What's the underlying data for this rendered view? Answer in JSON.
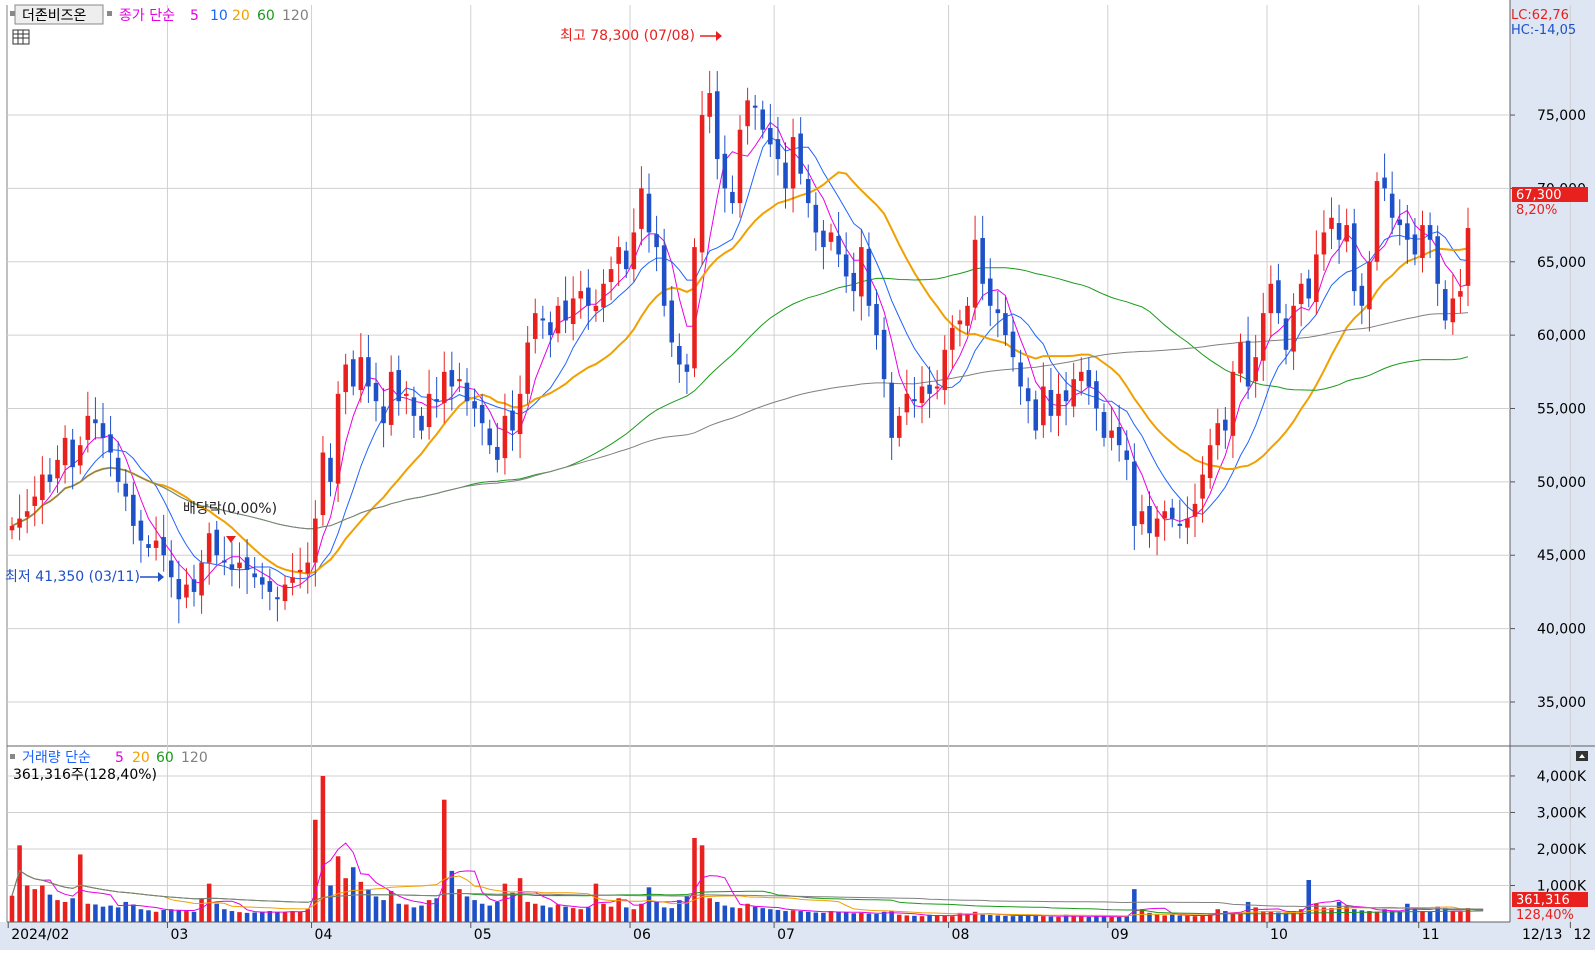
{
  "header": {
    "stock_name": "더존비즈온",
    "ma_label": "종가 단순",
    "ma_periods": [
      "5",
      "10",
      "20",
      "60",
      "120"
    ],
    "ma_colors": [
      "#e600e6",
      "#1e64ff",
      "#f0a000",
      "#1a9a1a",
      "#808080"
    ]
  },
  "volume_header": {
    "label": "거래량 단순",
    "ma_periods": [
      "5",
      "20",
      "60",
      "120"
    ],
    "current": "361,316주(128,40%)"
  },
  "right_info": {
    "lc": "LC:62,76",
    "hc": "HC:-14,05"
  },
  "markers": {
    "high": "최고 78,300 (07/08)",
    "low": "최저 41,350 (03/11)",
    "dividend": "배당락(0,00%)"
  },
  "price_tags": {
    "price": "67,300",
    "change": "8,20%",
    "volume": "361,316",
    "volume_pct": "128,40%"
  },
  "last_date": "12/13",
  "colors": {
    "up": "#e8201e",
    "down": "#1e50c8",
    "grid": "#d0d0d0",
    "axis_bg": "#dde6f2"
  },
  "chart_data": {
    "type": "candlestick",
    "x_axis_labels": [
      "2024/02",
      "03",
      "04",
      "05",
      "06",
      "07",
      "08",
      "09",
      "10",
      "11",
      "12"
    ],
    "price_axis": {
      "ticks": [
        35000,
        40000,
        45000,
        50000,
        55000,
        60000,
        65000,
        70000,
        75000
      ],
      "tick_labels": [
        "35,000",
        "40,000",
        "45,000",
        "50,000",
        "55,000",
        "60,000",
        "65,000",
        "70,000",
        "75,000"
      ],
      "range": [
        32000,
        82500
      ]
    },
    "volume_axis": {
      "ticks": [
        1000000,
        2000000,
        3000000,
        4000000
      ],
      "tick_labels": [
        "1,000K",
        "2,000K",
        "3,000K",
        "4,000K"
      ],
      "range": [
        0,
        4300000
      ]
    },
    "closes": [
      47000,
      47500,
      48000,
      49000,
      50500,
      50000,
      51500,
      53000,
      51000,
      52500,
      54500,
      54000,
      53000,
      52000,
      50000,
      49000,
      47000,
      46000,
      45500,
      46000,
      45000,
      43500,
      42000,
      43000,
      42500,
      44500,
      46500,
      45000,
      44500,
      44000,
      44500,
      44000,
      43500,
      43000,
      42500,
      42000,
      43000,
      43500,
      44000,
      44500,
      47500,
      52000,
      50000,
      56000,
      58000,
      56500,
      58500,
      56500,
      55500,
      54000,
      57500,
      55500,
      56000,
      54500,
      53500,
      56000,
      55500,
      57500,
      56500,
      57000,
      55500,
      55000,
      54000,
      52500,
      51500,
      54500,
      53500,
      56000,
      59500,
      61500,
      61000,
      60000,
      62000,
      61000,
      62500,
      63000,
      62000,
      62000,
      63500,
      64500,
      66000,
      64500,
      67000,
      70000,
      67000,
      66000,
      62000,
      59500,
      58000,
      57500,
      66000,
      75000,
      76500,
      72000,
      70000,
      69000,
      74000,
      76000,
      75500,
      74000,
      73000,
      72000,
      70000,
      73500,
      71000,
      69000,
      67000,
      66000,
      67000,
      65500,
      64000,
      63000,
      66000,
      62000,
      60000,
      57000,
      53000,
      54500,
      56000,
      55500,
      56500,
      56000,
      56500,
      59000,
      60500,
      61000,
      62000,
      66500,
      63500,
      62000,
      61500,
      60000,
      58500,
      56500,
      55500,
      53500,
      56500,
      54500,
      56000,
      55500,
      57000,
      57500,
      56500,
      55000,
      53000,
      53500,
      52500,
      51500,
      47000,
      48000,
      46500,
      47500,
      48000,
      47500,
      47000,
      47500,
      48500,
      50500,
      52500,
      54000,
      53500,
      57500,
      59500,
      56500,
      58500,
      61500,
      63500,
      61500,
      59000,
      62000,
      63500,
      62500,
      65500,
      67000,
      68000,
      66500,
      67500,
      63000,
      62000,
      65000,
      70500,
      70000,
      68000,
      67500,
      66500,
      65500,
      67500,
      66500,
      63500,
      61000,
      62500,
      63000,
      67300
    ],
    "volumes": [
      720000,
      2100000,
      1000000,
      900000,
      1000000,
      750000,
      600000,
      550000,
      650000,
      1850000,
      500000,
      480000,
      420000,
      450000,
      400000,
      550000,
      480000,
      350000,
      320000,
      280000,
      330000,
      350000,
      320000,
      300000,
      280000,
      650000,
      1050000,
      500000,
      350000,
      300000,
      270000,
      250000,
      260000,
      280000,
      300000,
      260000,
      270000,
      300000,
      280000,
      350000,
      2800000,
      4000000,
      1000000,
      1800000,
      1200000,
      1500000,
      1100000,
      900000,
      700000,
      600000,
      850000,
      500000,
      480000,
      400000,
      450000,
      600000,
      650000,
      3350000,
      1400000,
      900000,
      700000,
      600000,
      500000,
      450000,
      550000,
      1050000,
      800000,
      1200000,
      550000,
      500000,
      450000,
      400000,
      480000,
      420000,
      380000,
      350000,
      400000,
      1050000,
      500000,
      420000,
      650000,
      400000,
      350000,
      500000,
      950000,
      550000,
      400000,
      380000,
      600000,
      700000,
      2300000,
      2100000,
      650000,
      550000,
      450000,
      400000,
      380000,
      500000,
      420000,
      380000,
      350000,
      330000,
      300000,
      320000,
      300000,
      280000,
      260000,
      250000,
      300000,
      280000,
      260000,
      240000,
      250000,
      230000,
      220000,
      280000,
      300000,
      200000,
      180000,
      170000,
      160000,
      200000,
      180000,
      170000,
      160000,
      250000,
      220000,
      280000,
      200000,
      190000,
      180000,
      170000,
      160000,
      200000,
      180000,
      170000,
      160000,
      150000,
      140000,
      200000,
      160000,
      150000,
      140000,
      150000,
      160000,
      140000,
      150000,
      160000,
      900000,
      350000,
      250000,
      200000,
      180000,
      200000,
      180000,
      170000,
      160000,
      180000,
      200000,
      350000,
      300000,
      250000,
      230000,
      550000,
      400000,
      300000,
      280000,
      260000,
      240000,
      300000,
      350000,
      1150000,
      500000,
      400000,
      380000,
      550000,
      450000,
      350000,
      320000,
      300000,
      280000,
      350000,
      300000,
      280000,
      500000,
      350000,
      300000,
      280000,
      420000,
      380000,
      300000,
      280000,
      380000,
      340000,
      361316
    ],
    "month_start_index": [
      0,
      21,
      40,
      61,
      82,
      101,
      124,
      145,
      166,
      186,
      206
    ],
    "high_marker": {
      "value": 78300,
      "date": "07/08"
    },
    "low_marker": {
      "value": 41350,
      "date": "03/11"
    },
    "moving_averages": [
      5,
      10,
      20,
      60,
      120
    ],
    "volume_moving_averages": [
      5,
      20,
      60,
      120
    ]
  }
}
